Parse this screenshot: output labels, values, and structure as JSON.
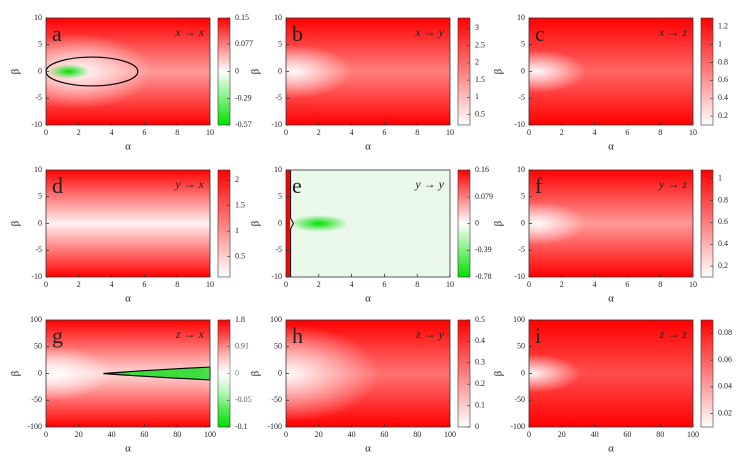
{
  "chart_data": [
    {
      "type": "heatmap",
      "panel": "a",
      "title": "x → x",
      "xlabel": "α",
      "ylabel": "β",
      "xlim": [
        0,
        10
      ],
      "ylim": [
        -10,
        10
      ],
      "xticks": [
        0,
        2,
        4,
        6,
        8,
        10
      ],
      "yticks": [
        -10,
        -5,
        0,
        5,
        10
      ],
      "clim": [
        -0.57,
        0.15
      ],
      "ccenter": 0,
      "cticks": [
        0.15,
        0.077,
        0,
        -0.29,
        -0.57
      ],
      "colormap": [
        "#00e000",
        "#ffffff",
        "#ff0000"
      ]
    },
    {
      "type": "heatmap",
      "panel": "b",
      "title": "x → y",
      "xlabel": "α",
      "ylabel": "β",
      "xlim": [
        0,
        10
      ],
      "ylim": [
        -10,
        10
      ],
      "xticks": [
        0,
        2,
        4,
        6,
        8,
        10
      ],
      "yticks": [
        -10,
        -5,
        0,
        5,
        10
      ],
      "clim": [
        0.2,
        3.3
      ],
      "cticks": [
        0.5,
        1,
        1.5,
        2,
        2.5,
        3
      ],
      "colormap": [
        "#ffffff",
        "#ff0000"
      ]
    },
    {
      "type": "heatmap",
      "panel": "c",
      "title": "x → z",
      "xlabel": "α",
      "ylabel": "β",
      "xlim": [
        0,
        10
      ],
      "ylim": [
        -10,
        10
      ],
      "xticks": [
        0,
        2,
        4,
        6,
        8,
        10
      ],
      "yticks": [
        -10,
        -5,
        0,
        5,
        10
      ],
      "clim": [
        0.1,
        1.3
      ],
      "cticks": [
        0.2,
        0.4,
        0.6,
        0.8,
        1,
        1.2
      ],
      "colormap": [
        "#ffffff",
        "#ff0000"
      ]
    },
    {
      "type": "heatmap",
      "panel": "d",
      "title": "y → x",
      "xlabel": "α",
      "ylabel": "β",
      "xlim": [
        0,
        10
      ],
      "ylim": [
        -10,
        10
      ],
      "xticks": [
        0,
        2,
        4,
        6,
        8,
        10
      ],
      "yticks": [
        -10,
        -5,
        0,
        5,
        10
      ],
      "clim": [
        0.1,
        2.2
      ],
      "cticks": [
        0.5,
        1,
        1.5,
        2
      ],
      "colormap": [
        "#ffffff",
        "#ff0000"
      ]
    },
    {
      "type": "heatmap",
      "panel": "e",
      "title": "y → y",
      "xlabel": "α",
      "ylabel": "β",
      "xlim": [
        0,
        10
      ],
      "ylim": [
        -10,
        10
      ],
      "xticks": [
        0,
        2,
        4,
        6,
        8,
        10
      ],
      "yticks": [
        -10,
        -5,
        0,
        5,
        10
      ],
      "clim": [
        -0.78,
        0.16
      ],
      "ccenter": 0,
      "cticks": [
        0.16,
        0.079,
        0,
        -0.39,
        -0.78
      ],
      "colormap": [
        "#00e000",
        "#ffffff",
        "#ff0000"
      ]
    },
    {
      "type": "heatmap",
      "panel": "f",
      "title": "y → z",
      "xlabel": "α",
      "ylabel": "β",
      "xlim": [
        0,
        10
      ],
      "ylim": [
        -10,
        10
      ],
      "xticks": [
        0,
        2,
        4,
        6,
        8,
        10
      ],
      "yticks": [
        -10,
        -5,
        0,
        5,
        10
      ],
      "clim": [
        0.1,
        1.08
      ],
      "cticks": [
        0.2,
        0.4,
        0.6,
        0.8,
        1
      ],
      "colormap": [
        "#ffffff",
        "#ff0000"
      ]
    },
    {
      "type": "heatmap",
      "panel": "g",
      "title": "z → x",
      "xlabel": "α",
      "ylabel": "β",
      "xlim": [
        0,
        100
      ],
      "ylim": [
        -100,
        100
      ],
      "xticks": [
        0,
        20,
        40,
        60,
        80,
        100
      ],
      "yticks": [
        -100,
        -50,
        0,
        50,
        100
      ],
      "clim": [
        -0.1,
        1.8
      ],
      "ccenter": 0,
      "cticks": [
        1.8,
        0.91,
        0,
        -0.05,
        -0.1
      ],
      "colormap": [
        "#00e000",
        "#ffffff",
        "#ff0000"
      ]
    },
    {
      "type": "heatmap",
      "panel": "h",
      "title": "z → y",
      "xlabel": "α",
      "ylabel": "β",
      "xlim": [
        0,
        100
      ],
      "ylim": [
        -100,
        100
      ],
      "xticks": [
        0,
        20,
        40,
        60,
        80,
        100
      ],
      "yticks": [
        -100,
        -50,
        0,
        50,
        100
      ],
      "clim": [
        0,
        0.5
      ],
      "cticks": [
        0,
        0.1,
        0.2,
        0.3,
        0.4,
        0.5
      ],
      "colormap": [
        "#ffffff",
        "#ff0000"
      ]
    },
    {
      "type": "heatmap",
      "panel": "i",
      "title": "z → z",
      "xlabel": "α",
      "ylabel": "β",
      "xlim": [
        0,
        100
      ],
      "ylim": [
        -100,
        100
      ],
      "xticks": [
        0,
        20,
        40,
        60,
        80,
        100
      ],
      "yticks": [
        -100,
        -50,
        0,
        50,
        100
      ],
      "clim": [
        0.01,
        0.09
      ],
      "cticks": [
        0.02,
        0.04,
        0.06,
        0.08
      ],
      "colormap": [
        "#ffffff",
        "#ff0000"
      ]
    }
  ]
}
